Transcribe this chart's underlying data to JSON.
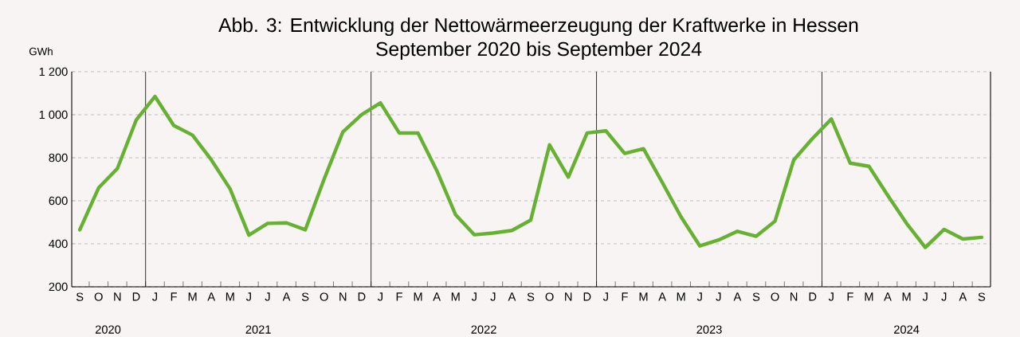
{
  "chart_data": {
    "type": "line",
    "title": "Abb. 3: Entwicklung der Nettowärmeerzeugung der Kraftwerke in Hessen",
    "subtitle": "September 2020 bis September 2024",
    "ylabel": "GWh",
    "categories": [
      "S",
      "O",
      "N",
      "D",
      "J",
      "F",
      "M",
      "A",
      "M",
      "J",
      "J",
      "A",
      "S",
      "O",
      "N",
      "D",
      "J",
      "F",
      "M",
      "A",
      "M",
      "J",
      "J",
      "A",
      "S",
      "O",
      "N",
      "D",
      "J",
      "F",
      "M",
      "A",
      "M",
      "J",
      "J",
      "A",
      "S",
      "O",
      "N",
      "D",
      "J",
      "F",
      "M",
      "A",
      "M",
      "J",
      "J",
      "A",
      "S"
    ],
    "series": [
      {
        "color": "#66b032",
        "values": [
          465,
          660,
          750,
          975,
          1085,
          950,
          905,
          790,
          655,
          440,
          495,
          497,
          465,
          700,
          920,
          1000,
          1055,
          915,
          915,
          740,
          535,
          442,
          450,
          462,
          510,
          860,
          710,
          915,
          925,
          820,
          842,
          685,
          525,
          390,
          418,
          458,
          435,
          505,
          790,
          890,
          980,
          775,
          760,
          625,
          495,
          383,
          467,
          422,
          430
        ]
      }
    ],
    "annotations": [
      "2020",
      "2021",
      "2022",
      "2023",
      "2024"
    ],
    "ylim": [
      200,
      1200
    ],
    "yticks": [
      200,
      400,
      600,
      800,
      {
        "value": 1000,
        "label": "1 000"
      },
      {
        "value": 1200,
        "label": "1 200"
      }
    ],
    "grid": "y",
    "marker": "none",
    "line_style": "solid"
  }
}
